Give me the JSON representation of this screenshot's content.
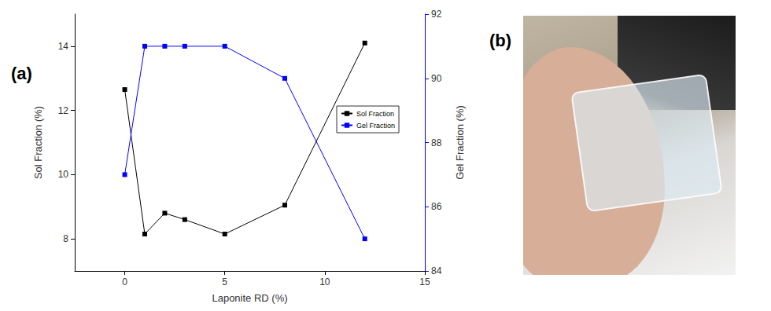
{
  "panel_labels": [
    "(a)",
    "(b)"
  ],
  "chart_data": {
    "type": "line",
    "x_label": "Laponite RD (%)",
    "y_label": "Sol Fraction (%)",
    "y2_label": "Gel Fraction (%)",
    "x": [
      0,
      1,
      2,
      3,
      5,
      8,
      12
    ],
    "series": [
      {
        "name": "Sol Fraction",
        "color": "#000000",
        "marker": "square",
        "values": [
          12.65,
          8.15,
          8.8,
          8.6,
          8.15,
          9.05,
          14.1
        ]
      },
      {
        "name": "Gel Fraction",
        "color": "#0000ff",
        "marker": "square",
        "axis": "y2",
        "values": [
          87,
          91,
          91,
          91,
          91,
          90,
          85
        ]
      }
    ],
    "xlim": [
      -2.5,
      15
    ],
    "xticks": [
      0,
      5,
      10,
      15
    ],
    "ylim": [
      7,
      15
    ],
    "yticks": [
      8,
      10,
      12,
      14
    ],
    "y2lim": [
      84,
      92
    ],
    "y2ticks": [
      84,
      86,
      88,
      90,
      92
    ],
    "grid": false,
    "legend": "right"
  }
}
